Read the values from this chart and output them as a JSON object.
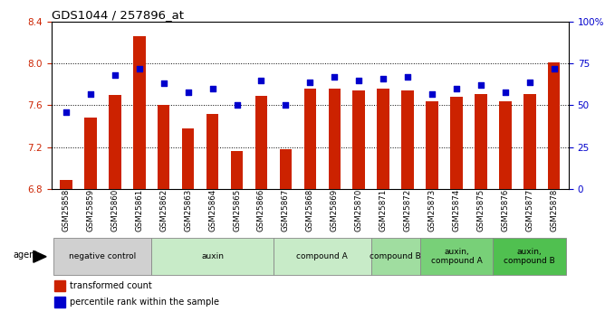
{
  "title": "GDS1044 / 257896_at",
  "samples": [
    "GSM25858",
    "GSM25859",
    "GSM25860",
    "GSM25861",
    "GSM25862",
    "GSM25863",
    "GSM25864",
    "GSM25865",
    "GSM25866",
    "GSM25867",
    "GSM25868",
    "GSM25869",
    "GSM25870",
    "GSM25871",
    "GSM25872",
    "GSM25873",
    "GSM25874",
    "GSM25875",
    "GSM25876",
    "GSM25877",
    "GSM25878"
  ],
  "transformed_count": [
    6.88,
    7.48,
    7.7,
    8.26,
    7.6,
    7.38,
    7.52,
    7.16,
    7.69,
    7.18,
    7.76,
    7.76,
    7.74,
    7.76,
    7.74,
    7.64,
    7.68,
    7.71,
    7.64,
    7.71,
    8.01
  ],
  "percentile_rank": [
    46,
    57,
    68,
    72,
    63,
    58,
    60,
    50,
    65,
    50,
    64,
    67,
    65,
    66,
    67,
    57,
    60,
    62,
    58,
    64,
    72
  ],
  "ylim_left": [
    6.8,
    8.4
  ],
  "ylim_right": [
    0,
    100
  ],
  "yticks_left": [
    6.8,
    7.2,
    7.6,
    8.0,
    8.4
  ],
  "yticks_right": [
    0,
    25,
    50,
    75,
    100
  ],
  "ytick_labels_right": [
    "0",
    "25",
    "50",
    "75",
    "100%"
  ],
  "groups": [
    {
      "label": "negative control",
      "start": 0,
      "end": 3,
      "color": "#d0d0d0"
    },
    {
      "label": "auxin",
      "start": 4,
      "end": 8,
      "color": "#c8ebc8"
    },
    {
      "label": "compound A",
      "start": 9,
      "end": 12,
      "color": "#c8ebc8"
    },
    {
      "label": "compound B",
      "start": 13,
      "end": 14,
      "color": "#a0dda0"
    },
    {
      "label": "auxin,\ncompound A",
      "start": 15,
      "end": 17,
      "color": "#78d078"
    },
    {
      "label": "auxin,\ncompound B",
      "start": 18,
      "end": 20,
      "color": "#50c050"
    }
  ],
  "bar_color": "#cc2200",
  "dot_color": "#0000cc",
  "bar_width": 0.5,
  "agent_label": "agent",
  "legend_bar_label": "transformed count",
  "legend_dot_label": "percentile rank within the sample",
  "tick_color_left": "#cc2200",
  "tick_color_right": "#0000cc",
  "grid_color_dotted": "#000000"
}
